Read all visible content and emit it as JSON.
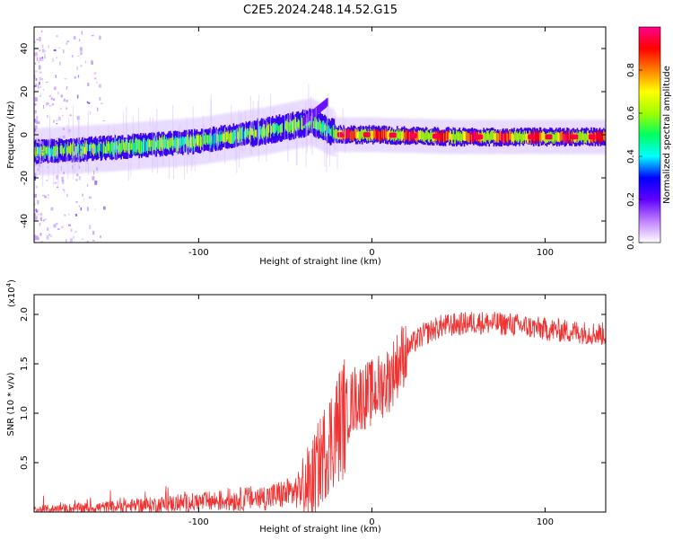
{
  "title": "C2E5.2024.248.14.52.G15",
  "chart_data": [
    {
      "type": "heatmap",
      "name": "spectrogram",
      "xlabel": "Height of straight line (km)",
      "ylabel": "Frequency (Hz)",
      "xlim": [
        -195,
        135
      ],
      "ylim": [
        -50,
        50
      ],
      "xticks": [
        -100,
        0,
        100
      ],
      "yticks": [
        -40,
        -20,
        0,
        20,
        40
      ],
      "ridge": {
        "description": "dominant frequency trace",
        "x": [
          -195,
          -150,
          -100,
          -60,
          -35,
          -28,
          -20,
          0,
          50,
          100,
          135
        ],
        "y": [
          -8,
          -6,
          -3,
          2,
          6,
          3,
          0,
          0,
          -1,
          -1,
          -1
        ]
      },
      "colorbar": {
        "label": "Normalized spectral amplitude",
        "range": [
          0,
          1
        ],
        "ticks": [
          "0.0",
          "0.2",
          "0.4",
          "0.6",
          "0.8"
        ],
        "colors": [
          "#ffffff",
          "#c080ff",
          "#6000ff",
          "#0000ff",
          "#00ffff",
          "#00ff60",
          "#a0ff00",
          "#ffff00",
          "#ff8000",
          "#ff0000",
          "#ff0090"
        ]
      }
    },
    {
      "type": "line",
      "name": "snr",
      "xlabel": "Height of straight line (km)",
      "ylabel": "SNR (10 * v/v)",
      "scale_label": "(x10",
      "scale_exp": "4",
      "scale_close": ")",
      "xlim": [
        -195,
        135
      ],
      "ylim": [
        0,
        2.2
      ],
      "xticks": [
        -100,
        0,
        100
      ],
      "yticks": [
        "0.5",
        "1.0",
        "1.5",
        "2.0"
      ],
      "color": "#ee3333",
      "baseline": {
        "x": [
          -195,
          -150,
          -100,
          -60,
          -45,
          -35,
          -30,
          -25,
          -20,
          -10,
          0,
          10,
          20,
          30,
          40,
          60,
          80,
          100,
          120,
          135
        ],
        "y": [
          0.02,
          0.05,
          0.1,
          0.15,
          0.2,
          0.3,
          0.5,
          0.7,
          0.85,
          1.15,
          1.2,
          1.35,
          1.65,
          1.8,
          1.88,
          1.92,
          1.9,
          1.85,
          1.82,
          1.8
        ]
      }
    }
  ]
}
